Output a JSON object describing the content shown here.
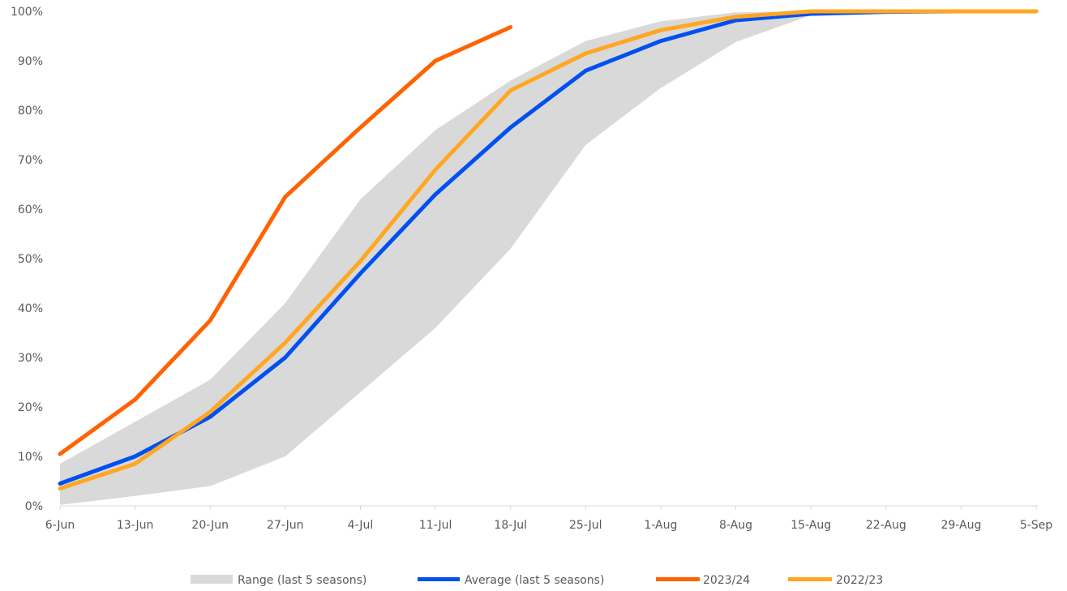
{
  "chart_data": {
    "type": "line",
    "title": "",
    "xlabel": "",
    "ylabel": "",
    "categories": [
      "6-Jun",
      "13-Jun",
      "20-Jun",
      "27-Jun",
      "4-Jul",
      "11-Jul",
      "18-Jul",
      "25-Jul",
      "1-Aug",
      "8-Aug",
      "15-Aug",
      "22-Aug",
      "29-Aug",
      "5-Sep"
    ],
    "y_ticks": [
      "0%",
      "10%",
      "20%",
      "30%",
      "40%",
      "50%",
      "60%",
      "70%",
      "80%",
      "90%",
      "100%"
    ],
    "ylim": [
      0,
      100
    ],
    "grid": false,
    "legend_position": "bottom",
    "range": {
      "name": "Range (last 5 seasons)",
      "color": "#d9d9d9",
      "low": [
        0.2,
        2,
        4,
        10,
        23,
        36,
        52,
        73,
        84.5,
        93.8,
        99.2,
        99.8,
        100,
        100
      ],
      "high": [
        8.5,
        17,
        25.5,
        41,
        62,
        76,
        86,
        94,
        98,
        99.8,
        100,
        100,
        100,
        100
      ]
    },
    "series": [
      {
        "name": "Average (last 5 seasons)",
        "color": "#0050f0",
        "values": [
          4.5,
          10,
          18,
          30,
          47,
          63,
          76.5,
          88,
          94,
          98.2,
          99.5,
          99.9,
          100,
          100
        ]
      },
      {
        "name": "2023/24",
        "color": "#ff6200",
        "values": [
          10.5,
          21.5,
          37.5,
          62.5,
          76.5,
          90,
          96.8,
          null,
          null,
          null,
          null,
          null,
          null,
          null
        ]
      },
      {
        "name": "2022/23",
        "color": "#ffa722",
        "values": [
          3.5,
          8.5,
          19,
          33,
          49.5,
          68,
          84,
          91.5,
          96.2,
          98.9,
          100,
          100,
          100,
          100
        ]
      }
    ]
  }
}
